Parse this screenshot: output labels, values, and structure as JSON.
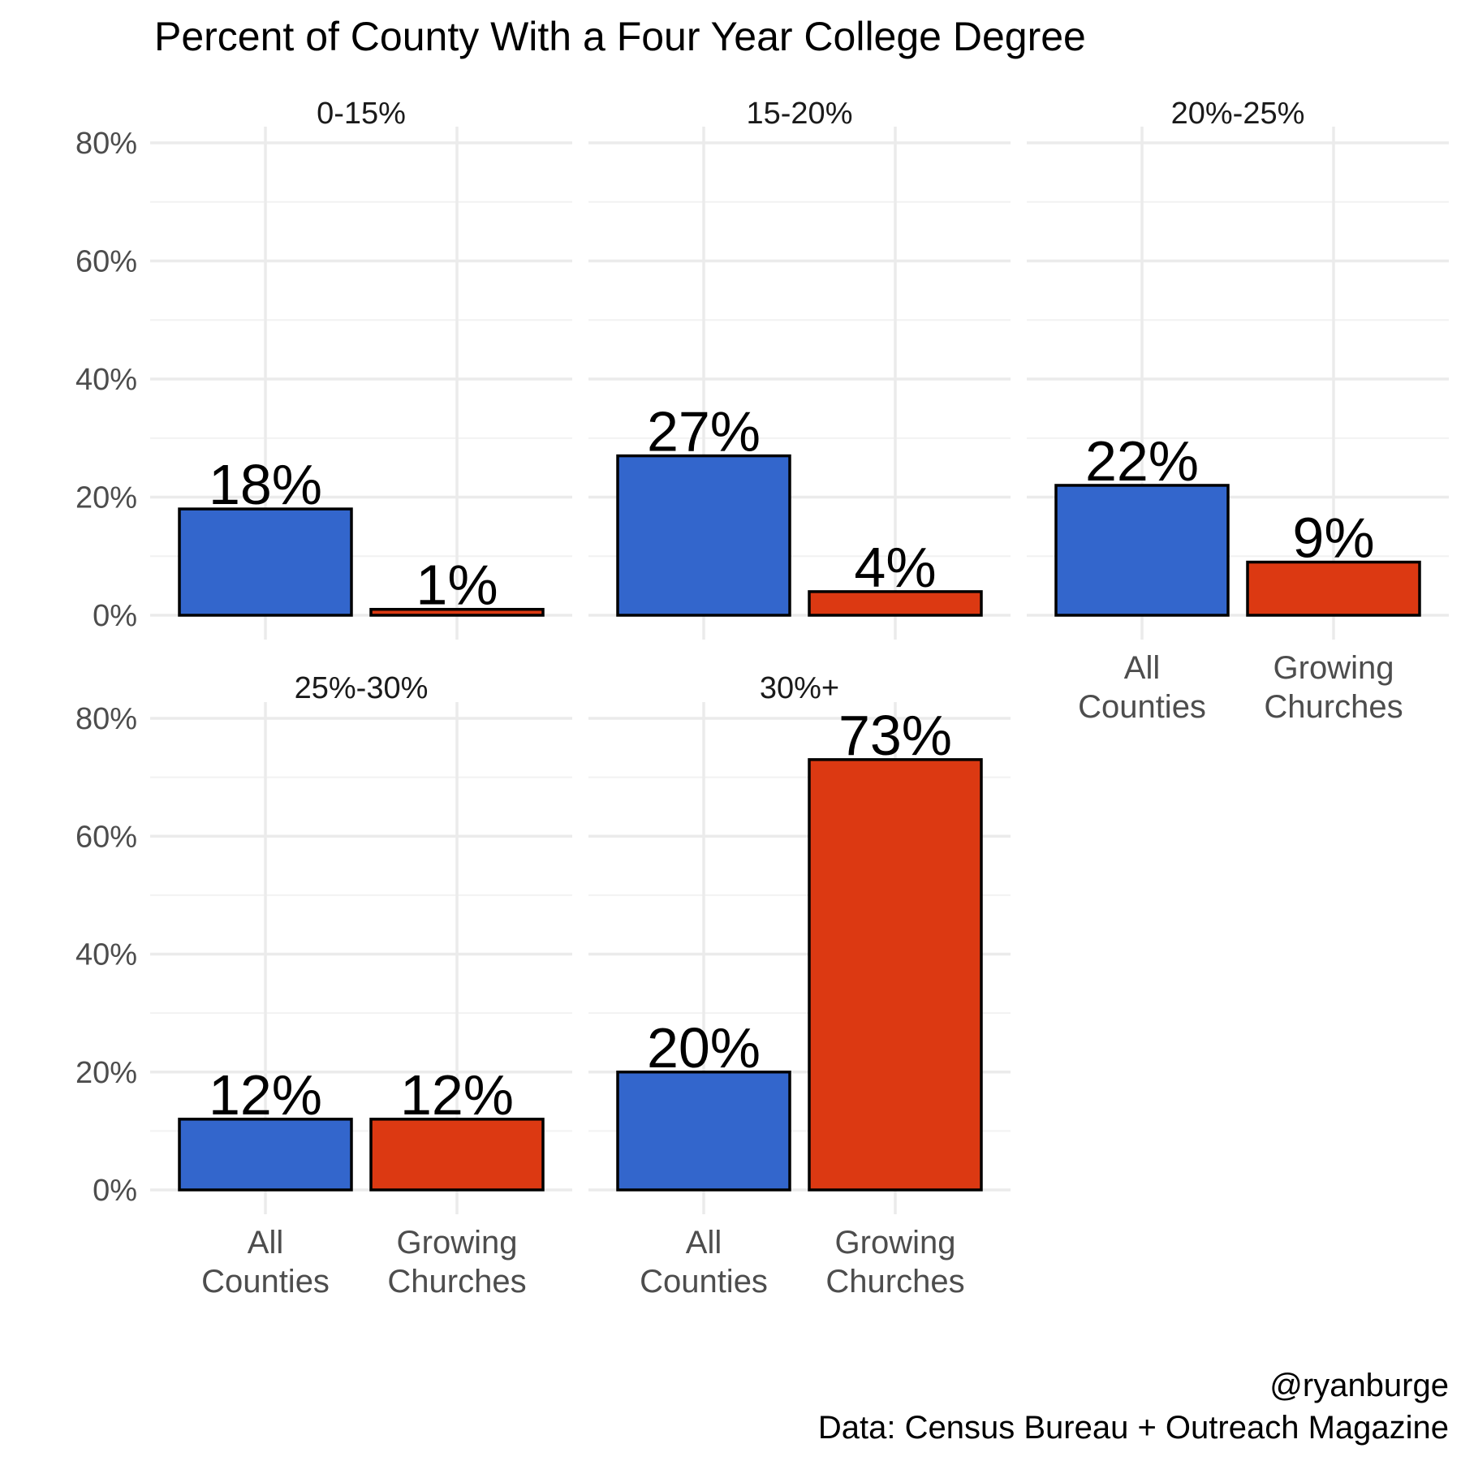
{
  "chart_data": {
    "type": "bar",
    "title": "Percent of County With a Four Year College Degree",
    "xlabel": "",
    "ylabel": "",
    "ylim": [
      0,
      80
    ],
    "y_ticks": [
      "0%",
      "20%",
      "40%",
      "60%",
      "80%"
    ],
    "grid": true,
    "legend": "none",
    "categories": [
      "All\nCounties",
      "Growing\nChurches"
    ],
    "colors": {
      "All Counties": "#3366CC",
      "Growing Churches": "#DC3912"
    },
    "panels": [
      {
        "label": "0-15%",
        "values": [
          18,
          1
        ],
        "data_labels": [
          "18%",
          "1%"
        ]
      },
      {
        "label": "15-20%",
        "values": [
          27,
          4
        ],
        "data_labels": [
          "27%",
          "4%"
        ]
      },
      {
        "label": "20%-25%",
        "values": [
          22,
          9
        ],
        "data_labels": [
          "22%",
          "9%"
        ]
      },
      {
        "label": "25%-30%",
        "values": [
          12,
          12
        ],
        "data_labels": [
          "12%",
          "12%"
        ]
      },
      {
        "label": "30%+",
        "values": [
          20,
          73
        ],
        "data_labels": [
          "20%",
          "73%"
        ]
      }
    ]
  },
  "caption": {
    "line1": "@ryanburge",
    "line2": "Data: Census Bureau + Outreach Magazine"
  }
}
